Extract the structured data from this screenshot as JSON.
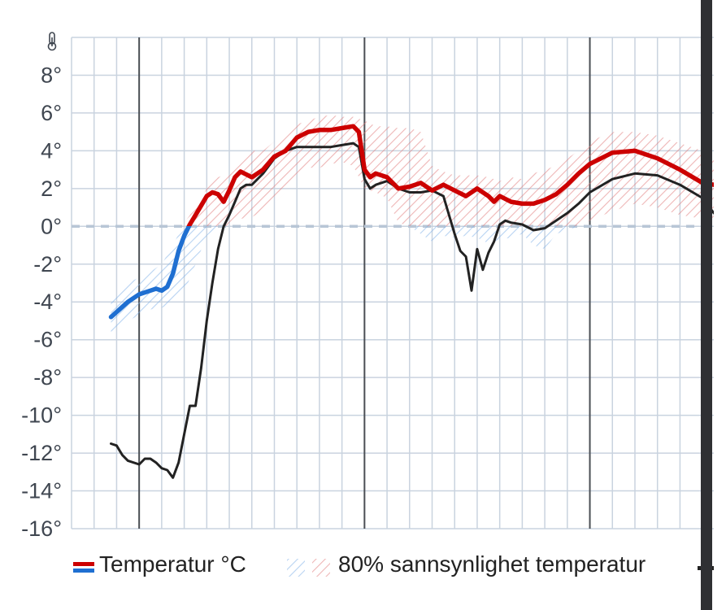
{
  "chart_data": {
    "type": "line",
    "title": "",
    "xlabel": "",
    "ylabel": "",
    "y_ticks": [
      "8°",
      "6°",
      "4°",
      "2°",
      "0°",
      "-2°",
      "-4°",
      "-6°",
      "-8°",
      "-10°",
      "-12°",
      "-14°",
      "-16°"
    ],
    "y_tick_values": [
      8,
      6,
      4,
      2,
      0,
      -2,
      -4,
      -6,
      -8,
      -10,
      -12,
      -14,
      -16
    ],
    "ylim": [
      -16,
      10
    ],
    "xlim": [
      0,
      57
    ],
    "grid": true,
    "day_dividers": [
      6,
      26,
      46
    ],
    "series": [
      {
        "name": "Temperatur °C",
        "color_positive": "#cc0000",
        "color_negative": "#1f6fd1",
        "x": [
          3.5,
          5,
          6,
          7,
          7.5,
          8,
          8.5,
          9,
          9.5,
          10,
          10.5,
          11,
          11.5,
          12,
          12.5,
          13,
          13.5,
          14,
          14.5,
          15,
          16,
          17,
          18,
          19,
          20,
          21,
          22,
          23,
          24,
          25,
          25.5,
          26,
          26.5,
          27,
          28,
          29,
          30,
          31,
          32,
          33,
          34,
          35,
          36,
          37,
          37.5,
          38,
          39,
          40,
          41,
          42,
          43,
          44,
          45,
          46,
          48,
          50,
          52,
          54,
          56,
          57
        ],
        "values": [
          -4.8,
          -4.0,
          -3.6,
          -3.4,
          -3.3,
          -3.4,
          -3.2,
          -2.5,
          -1.3,
          -0.5,
          0.1,
          0.6,
          1.1,
          1.6,
          1.8,
          1.7,
          1.3,
          1.9,
          2.6,
          2.9,
          2.6,
          3.0,
          3.7,
          4.0,
          4.7,
          5.0,
          5.1,
          5.1,
          5.2,
          5.3,
          5.0,
          3.0,
          2.6,
          2.8,
          2.6,
          2.0,
          2.1,
          2.3,
          1.9,
          2.2,
          1.9,
          1.6,
          2.0,
          1.6,
          1.3,
          1.6,
          1.3,
          1.2,
          1.2,
          1.4,
          1.7,
          2.2,
          2.8,
          3.3,
          3.9,
          4.0,
          3.6,
          3.0,
          2.3,
          2.2
        ]
      },
      {
        "name": "",
        "color": "#222222",
        "x": [
          3.5,
          4,
          4.5,
          5,
          6,
          6.5,
          7,
          7.5,
          8,
          8.5,
          9,
          9.5,
          10,
          10.5,
          11,
          11.5,
          12,
          12.5,
          13,
          13.5,
          14,
          14.5,
          15,
          15.5,
          16,
          17,
          18,
          19,
          20,
          21,
          22,
          23,
          24,
          25,
          25.5,
          26,
          26.5,
          27,
          28,
          29,
          30,
          31,
          32,
          33,
          34,
          34.5,
          35,
          35.5,
          36,
          36.5,
          37,
          37.5,
          38,
          38.5,
          39,
          40,
          41,
          42,
          43,
          44,
          45,
          46,
          48,
          50,
          52,
          54,
          56,
          57
        ],
        "values": [
          -11.5,
          -11.6,
          -12.1,
          -12.4,
          -12.6,
          -12.3,
          -12.3,
          -12.5,
          -12.8,
          -12.9,
          -13.3,
          -12.5,
          -11.0,
          -9.5,
          -9.5,
          -7.5,
          -5.0,
          -3.0,
          -1.2,
          0.0,
          0.6,
          1.3,
          2.0,
          2.2,
          2.2,
          2.8,
          3.6,
          4.0,
          4.2,
          4.2,
          4.2,
          4.2,
          4.3,
          4.4,
          4.2,
          2.5,
          2.0,
          2.2,
          2.4,
          2.0,
          1.8,
          1.8,
          1.9,
          1.6,
          -0.4,
          -1.3,
          -1.6,
          -3.4,
          -1.2,
          -2.3,
          -1.4,
          -0.8,
          0.1,
          0.3,
          0.2,
          0.1,
          -0.2,
          -0.1,
          0.3,
          0.7,
          1.2,
          1.8,
          2.5,
          2.8,
          2.7,
          2.2,
          1.5,
          0.7
        ]
      }
    ],
    "confidence_band": {
      "name": "80% sannsynlighet temperatur",
      "x": [
        3.5,
        5,
        7,
        8,
        9,
        10,
        11,
        12,
        13,
        14,
        15,
        16,
        17,
        18,
        19,
        20,
        21,
        22,
        23,
        24,
        25,
        26,
        27,
        28,
        29,
        30,
        31,
        32,
        33,
        34,
        35,
        36,
        37,
        38,
        39,
        40,
        41,
        42,
        43,
        44,
        45,
        46,
        48,
        50,
        52,
        54,
        56,
        57
      ],
      "upper": [
        -4.0,
        -3.0,
        -2.4,
        -2.0,
        -1.0,
        0.2,
        1.0,
        2.0,
        2.6,
        2.8,
        3.6,
        4.0,
        4.0,
        4.5,
        5.0,
        5.4,
        5.6,
        5.8,
        5.9,
        5.8,
        5.8,
        5.6,
        5.3,
        5.3,
        5.2,
        5.2,
        5.0,
        3.2,
        2.9,
        2.7,
        2.7,
        2.7,
        2.6,
        2.4,
        2.6,
        2.5,
        2.8,
        3.0,
        3.2,
        3.6,
        4.0,
        4.5,
        5.0,
        5.0,
        4.8,
        4.4,
        4.0,
        3.8
      ],
      "lower": [
        -5.6,
        -5.0,
        -4.4,
        -4.3,
        -4.1,
        -3.5,
        -2.0,
        -0.5,
        0.0,
        0.0,
        0.4,
        0.5,
        0.8,
        1.2,
        1.8,
        2.5,
        3.1,
        3.1,
        3.3,
        3.4,
        3.2,
        2.0,
        1.8,
        1.5,
        0.2,
        0.0,
        -0.4,
        -0.8,
        -0.5,
        -0.6,
        -0.5,
        -0.6,
        -0.9,
        -0.7,
        -0.6,
        -0.4,
        -1.0,
        -1.2,
        -0.4,
        -0.2,
        0.0,
        0.3,
        0.8,
        1.2,
        1.0,
        0.6,
        0.4,
        0.3
      ]
    },
    "legend": [
      {
        "label": "Temperatur °C"
      },
      {
        "label": "80% sannsynlighet temperatur"
      }
    ]
  },
  "legend_items": {
    "temperature": "Temperatur °C",
    "probability": "80% sannsynlighet temperatur"
  },
  "colors": {
    "warm": "#cc0000",
    "cold": "#1f6fd1",
    "grid": "#c9d3df",
    "divider": "#4b4f55",
    "zero_line": "#b8c6d6",
    "text": "#3f4650"
  },
  "icons": {
    "y_axis": "thermometer-icon"
  }
}
